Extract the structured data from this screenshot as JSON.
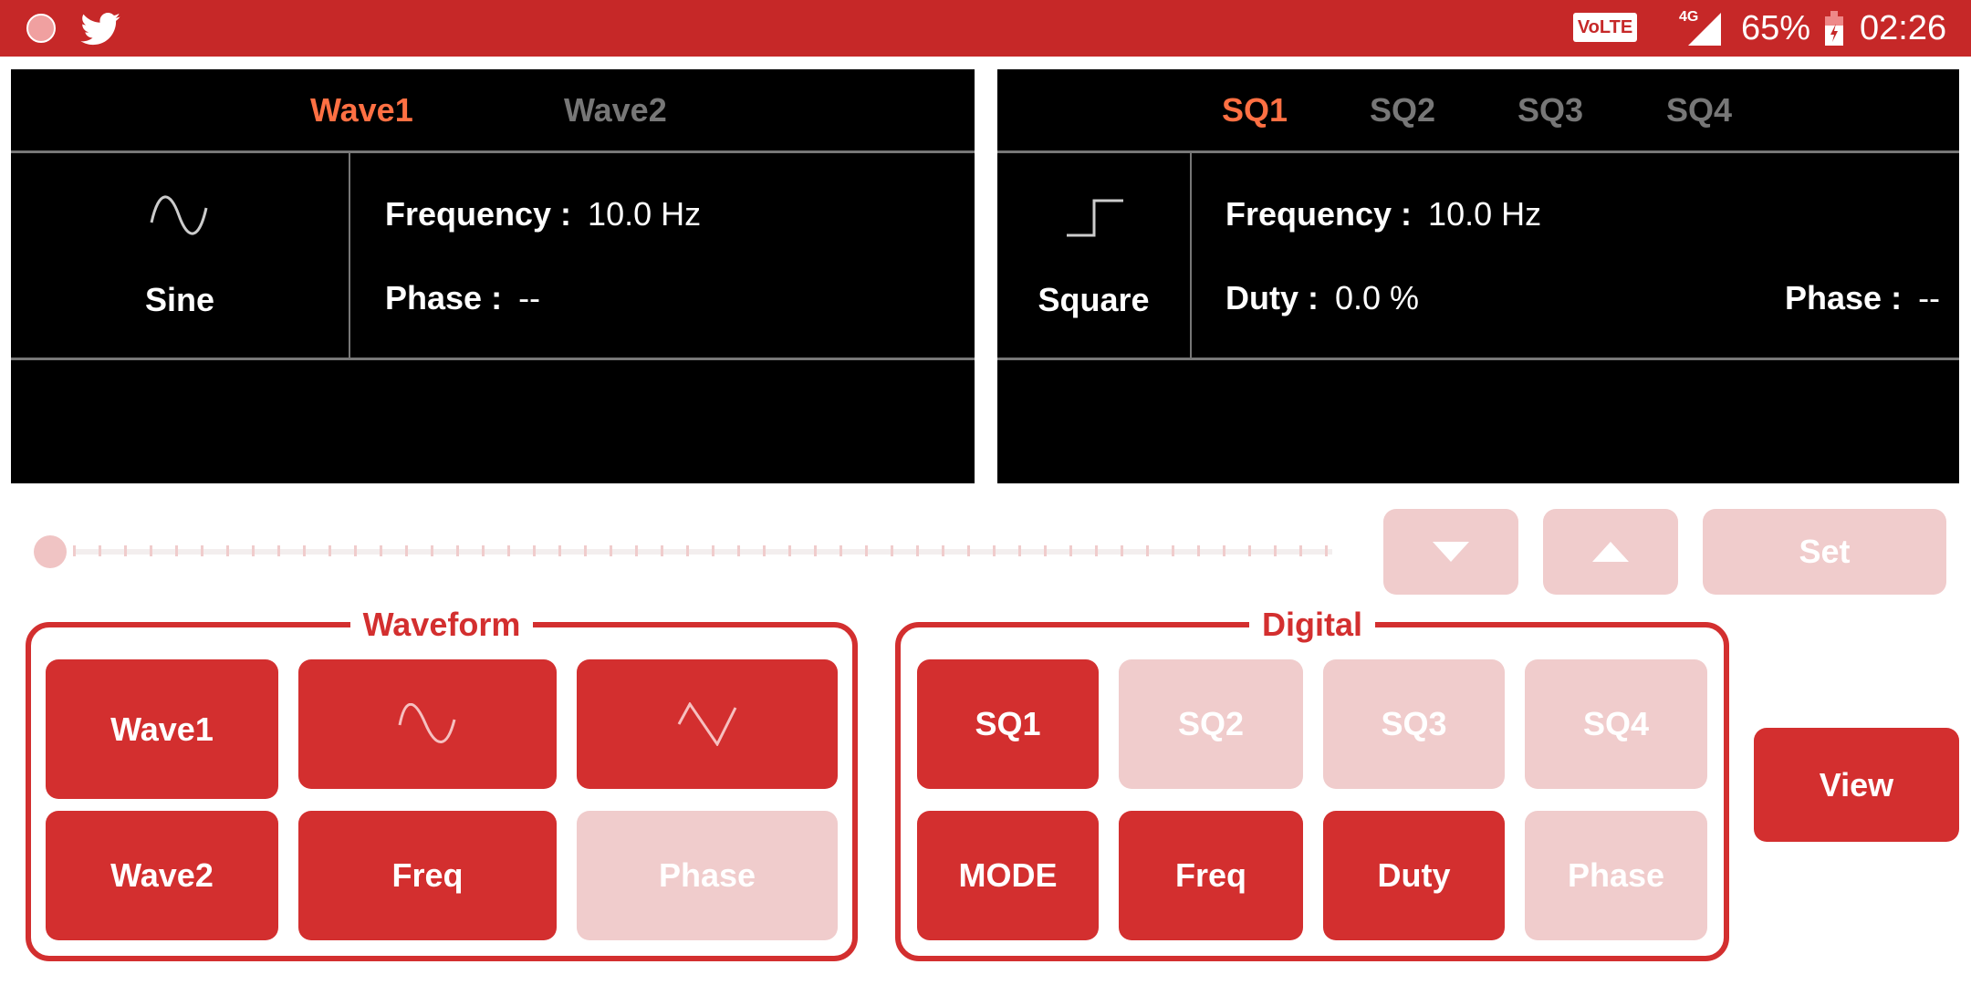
{
  "status_bar": {
    "icons": [
      "app-icon",
      "twitter-icon"
    ],
    "volte": "VoLTE",
    "network": "4G",
    "battery": "65%",
    "time": "02:26",
    "color": "#c62828"
  },
  "wave_panel": {
    "tabs": [
      {
        "label": "Wave1",
        "active": true
      },
      {
        "label": "Wave2",
        "active": false
      }
    ],
    "type": "Sine",
    "frequency_label": "Frequency :",
    "frequency_value": "10.0 Hz",
    "phase_label": "Phase :",
    "phase_value": "--"
  },
  "digital_panel": {
    "tabs": [
      {
        "label": "SQ1",
        "active": true
      },
      {
        "label": "SQ2",
        "active": false
      },
      {
        "label": "SQ3",
        "active": false
      },
      {
        "label": "SQ4",
        "active": false
      }
    ],
    "type": "Square",
    "frequency_label": "Frequency :",
    "frequency_value": "10.0 Hz",
    "duty_label": "Duty :",
    "duty_value": "0.0 %",
    "phase_label": "Phase :",
    "phase_value": "--"
  },
  "slider": {
    "value": 0
  },
  "controls": {
    "set": "Set",
    "view": "View"
  },
  "waveform_group": {
    "title": "Waveform",
    "wave1": "Wave1",
    "wave2": "Wave2",
    "freq": "Freq",
    "phase": "Phase"
  },
  "digital_group": {
    "title": "Digital",
    "sq1": "SQ1",
    "sq2": "SQ2",
    "sq3": "SQ3",
    "sq4": "SQ4",
    "mode": "MODE",
    "freq": "Freq",
    "duty": "Duty",
    "phase": "Phase"
  },
  "colors": {
    "accent": "#d32f2f",
    "disabled": "#f0cccc",
    "active_tab": "#ff7043",
    "inactive_tab": "#777777"
  }
}
